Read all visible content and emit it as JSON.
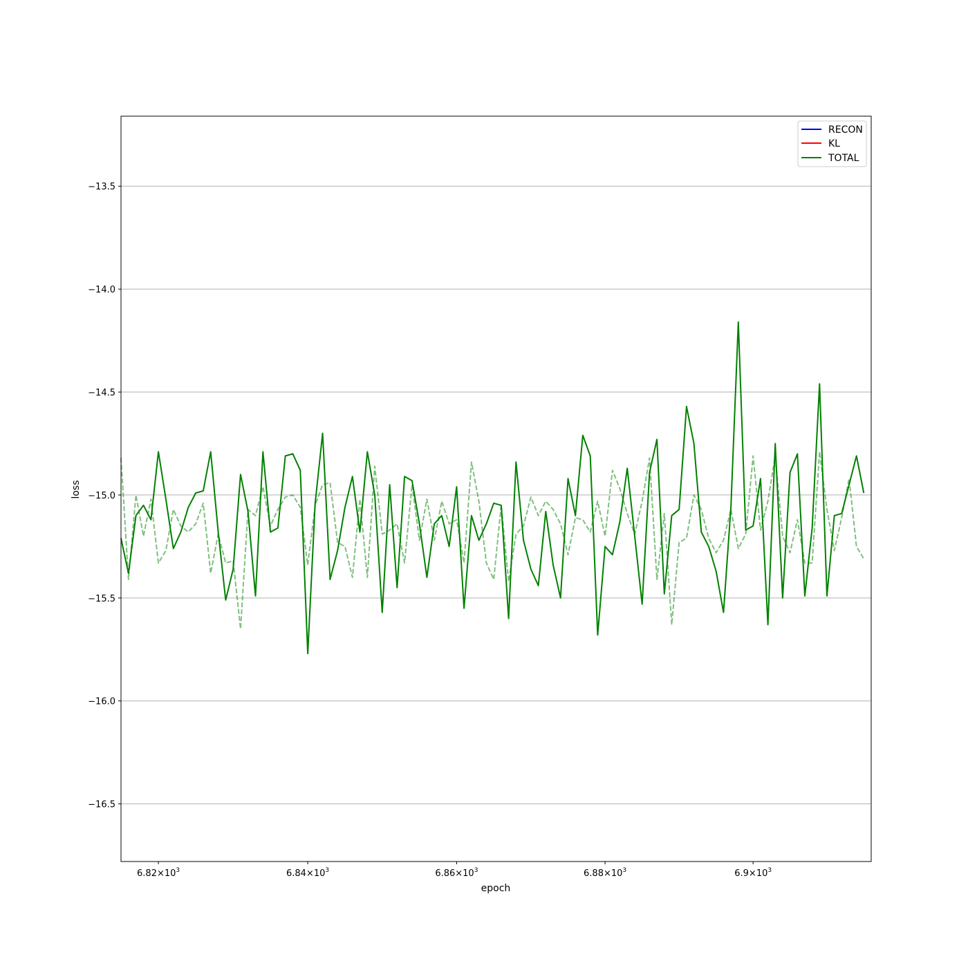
{
  "chart_data": {
    "type": "line",
    "xlabel": "epoch",
    "ylabel": "loss",
    "xscale": "log",
    "xlim": [
      6815,
      6916
    ],
    "ylim": [
      -16.78,
      -13.16
    ],
    "grid": "horizontal",
    "legend_position": "top-right",
    "colors": {
      "recon": "#0000ff",
      "kl": "#ff0000",
      "total": "#008000"
    },
    "x_ticks": [
      {
        "value": 6820,
        "mantissa": "6.82",
        "base": "10",
        "exponent": "3"
      },
      {
        "value": 6840,
        "mantissa": "6.84",
        "base": "10",
        "exponent": "3"
      },
      {
        "value": 6860,
        "mantissa": "6.86",
        "base": "10",
        "exponent": "3"
      },
      {
        "value": 6880,
        "mantissa": "6.88",
        "base": "10",
        "exponent": "3"
      },
      {
        "value": 6900,
        "mantissa": "6.9",
        "base": "10",
        "exponent": "3"
      }
    ],
    "y_ticks": [
      {
        "value": -13.5,
        "label": "−13.5"
      },
      {
        "value": -14.0,
        "label": "−14.0"
      },
      {
        "value": -14.5,
        "label": "−14.5"
      },
      {
        "value": -15.0,
        "label": "−15.0"
      },
      {
        "value": -15.5,
        "label": "−15.5"
      },
      {
        "value": -16.0,
        "label": "−16.0"
      },
      {
        "value": -16.5,
        "label": "−16.5"
      }
    ],
    "legend": [
      "RECON",
      "KL",
      "TOTAL"
    ],
    "x_start": 6815,
    "series": [
      {
        "name": "TOTAL",
        "style": "solid",
        "values": [
          -15.21,
          -15.38,
          -15.1,
          -15.05,
          -15.12,
          -14.79,
          -15.02,
          -15.26,
          -15.18,
          -15.06,
          -14.99,
          -14.98,
          -14.79,
          -15.18,
          -15.51,
          -15.36,
          -14.9,
          -15.08,
          -15.49,
          -14.79,
          -15.18,
          -15.16,
          -14.81,
          -14.8,
          -14.88,
          -15.77,
          -15.04,
          -14.7,
          -15.41,
          -15.27,
          -15.06,
          -14.91,
          -15.18,
          -14.79,
          -15.0,
          -15.57,
          -14.95,
          -15.45,
          -14.91,
          -14.93,
          -15.14,
          -15.4,
          -15.14,
          -15.1,
          -15.25,
          -14.96,
          -15.55,
          -15.1,
          -15.22,
          -15.14,
          -15.04,
          -15.05,
          -15.6,
          -14.84,
          -15.22,
          -15.36,
          -15.44,
          -15.08,
          -15.34,
          -15.5,
          -14.92,
          -15.1,
          -14.71,
          -14.81,
          -15.68,
          -15.25,
          -15.29,
          -15.13,
          -14.87,
          -15.2,
          -15.53,
          -14.89,
          -14.73,
          -15.48,
          -15.1,
          -15.07,
          -14.57,
          -14.75,
          -15.18,
          -15.25,
          -15.37,
          -15.57,
          -15.06,
          -14.16,
          -15.17,
          -15.15,
          -14.92,
          -15.63,
          -14.75,
          -15.5,
          -14.89,
          -14.8,
          -15.49,
          -15.16,
          -14.46,
          -15.49,
          -15.1,
          -15.09,
          -14.95,
          -14.81,
          -14.99
        ]
      },
      {
        "name": "TOTAL",
        "style": "dashed",
        "values": [
          -14.82,
          -15.41,
          -15.0,
          -15.2,
          -15.02,
          -15.33,
          -15.27,
          -15.07,
          -15.15,
          -15.18,
          -15.14,
          -15.04,
          -15.38,
          -15.19,
          -15.33,
          -15.32,
          -15.65,
          -15.07,
          -15.1,
          -14.96,
          -15.15,
          -15.07,
          -15.01,
          -15.0,
          -15.06,
          -15.34,
          -15.05,
          -14.95,
          -14.94,
          -15.23,
          -15.25,
          -15.4,
          -15.02,
          -15.4,
          -14.86,
          -15.19,
          -15.17,
          -15.14,
          -15.33,
          -14.95,
          -15.22,
          -15.02,
          -15.22,
          -15.03,
          -15.14,
          -15.12,
          -15.33,
          -14.84,
          -15.03,
          -15.33,
          -15.41,
          -15.05,
          -15.42,
          -15.19,
          -15.15,
          -15.01,
          -15.1,
          -15.03,
          -15.07,
          -15.14,
          -15.29,
          -15.11,
          -15.12,
          -15.18,
          -15.03,
          -15.2,
          -14.88,
          -14.97,
          -15.09,
          -15.19,
          -15.03,
          -14.82,
          -15.41,
          -15.09,
          -15.63,
          -15.23,
          -15.21,
          -15.0,
          -15.07,
          -15.21,
          -15.28,
          -15.22,
          -15.07,
          -15.26,
          -15.19,
          -14.81,
          -15.17,
          -15.03,
          -14.81,
          -15.2,
          -15.28,
          -15.12,
          -15.33,
          -15.33,
          -14.79,
          -15.07,
          -15.27,
          -15.11,
          -14.92,
          -15.25,
          -15.31
        ]
      }
    ]
  }
}
